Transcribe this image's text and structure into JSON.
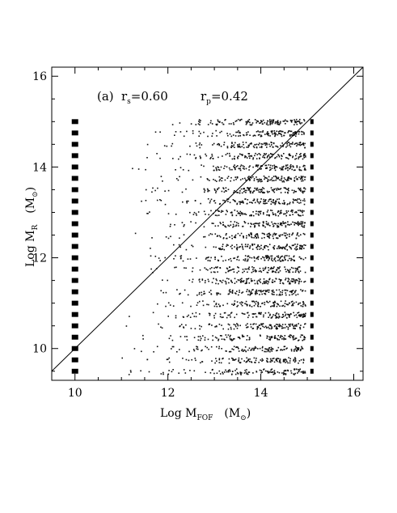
{
  "chart_data": {
    "type": "scatter",
    "title": "",
    "xlabel": {
      "main": "Log M",
      "sub": "FOF",
      "unit": "(M",
      "unit_sub": "⊙",
      "unit_close": ")"
    },
    "ylabel": {
      "main": "Log M",
      "sub": "R",
      "unit": "(M",
      "unit_sub": "⊙",
      "unit_close": ")"
    },
    "xlim": [
      9.5,
      16.2
    ],
    "ylim": [
      9.3,
      16.2
    ],
    "x_ticks": [
      10,
      12,
      14,
      16
    ],
    "y_ticks": [
      10,
      12,
      14,
      16
    ],
    "x_tick_labels": [
      "10",
      "12",
      "14",
      "16"
    ],
    "y_tick_labels": [
      "10",
      "12",
      "14",
      "16"
    ],
    "minor_tick_step": 0.5,
    "grid": false,
    "annotation": {
      "panel": "(a)",
      "rs_label": "r",
      "rs_sub": "s",
      "rs_value": "=0.60",
      "rp_label": "r",
      "rp_sub": "p",
      "rp_value": "=0.42"
    },
    "reference_line": {
      "label": "",
      "x": [
        9.5,
        16.2
      ],
      "y": [
        9.5,
        16.2
      ]
    },
    "rows_y": [
      9.5,
      9.75,
      10.0,
      10.25,
      10.5,
      10.75,
      11.0,
      11.25,
      11.5,
      11.75,
      12.0,
      12.25,
      12.5,
      12.75,
      13.0,
      13.25,
      13.5,
      13.75,
      14.0,
      14.25,
      14.5,
      14.75,
      15.0
    ],
    "left_column_x": 10.0,
    "right_column_x": 15.1,
    "band_x_range": [
      10.9,
      14.95
    ],
    "band_density_peak_x": 14.0
  }
}
